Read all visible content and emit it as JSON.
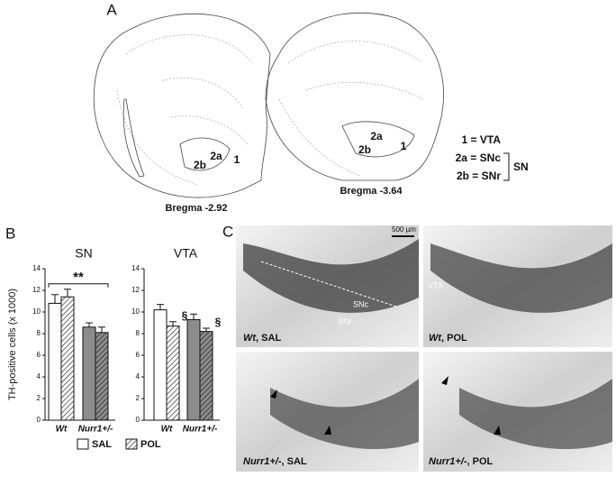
{
  "panel_labels": [
    "A",
    "B",
    "C"
  ],
  "panel_a": {
    "regions_left": [
      "2a",
      "2b",
      "1"
    ],
    "regions_right": [
      "2a",
      "2b",
      "1"
    ],
    "bregma_left": "Bregma -2.92",
    "bregma_right": "Bregma -3.64",
    "key": [
      "1 = VTA",
      "2a = SNc",
      "2b = SNr"
    ],
    "key_group": "SN"
  },
  "panel_c": {
    "scale_bar": "500 µm",
    "region_labels": [
      "VTA",
      "SNc",
      "SNr"
    ],
    "captions": [
      {
        "genotype": "Wt",
        "treatment": ", SAL"
      },
      {
        "genotype": "Wt",
        "treatment": ", POL"
      },
      {
        "genotype": "Nurr1+/-",
        "treatment": ", SAL"
      },
      {
        "genotype": "Nurr1+/-",
        "treatment": ", POL"
      }
    ]
  },
  "chart_data": [
    {
      "type": "bar",
      "title": "SN",
      "ylabel": "TH-positive cells (x 1000)",
      "categories": [
        "Wt",
        "Nurr1+/-"
      ],
      "series": [
        {
          "name": "SAL",
          "colors": [
            "#ffffff",
            "#8c8c8c"
          ],
          "hatch": false,
          "values": [
            10.8,
            8.6
          ],
          "errors": [
            0.8,
            0.4
          ]
        },
        {
          "name": "POL",
          "colors": [
            "#ffffff",
            "#8c8c8c"
          ],
          "hatch": true,
          "values": [
            11.4,
            8.1
          ],
          "errors": [
            0.7,
            0.5
          ]
        }
      ],
      "ylim": [
        0,
        14
      ],
      "yticks": [
        0,
        2,
        4,
        6,
        8,
        10,
        12,
        14
      ],
      "annotations": [
        "**"
      ]
    },
    {
      "type": "bar",
      "title": "VTA",
      "categories": [
        "Wt",
        "Nurr1+/-"
      ],
      "series": [
        {
          "colors": [
            "#ffffff",
            "#8c8c8c"
          ],
          "hatch": false,
          "values": [
            10.2,
            9.3
          ],
          "errors": [
            0.5,
            0.5
          ]
        },
        {
          "colors": [
            "#ffffff",
            "#8c8c8c"
          ],
          "hatch": true,
          "values": [
            8.7,
            8.2
          ],
          "errors": [
            0.4,
            0.3
          ]
        }
      ],
      "ylim": [
        0,
        14
      ],
      "yticks": [
        0,
        2,
        4,
        6,
        8,
        10,
        12,
        14
      ],
      "annotations": [
        "§",
        "§"
      ]
    }
  ]
}
